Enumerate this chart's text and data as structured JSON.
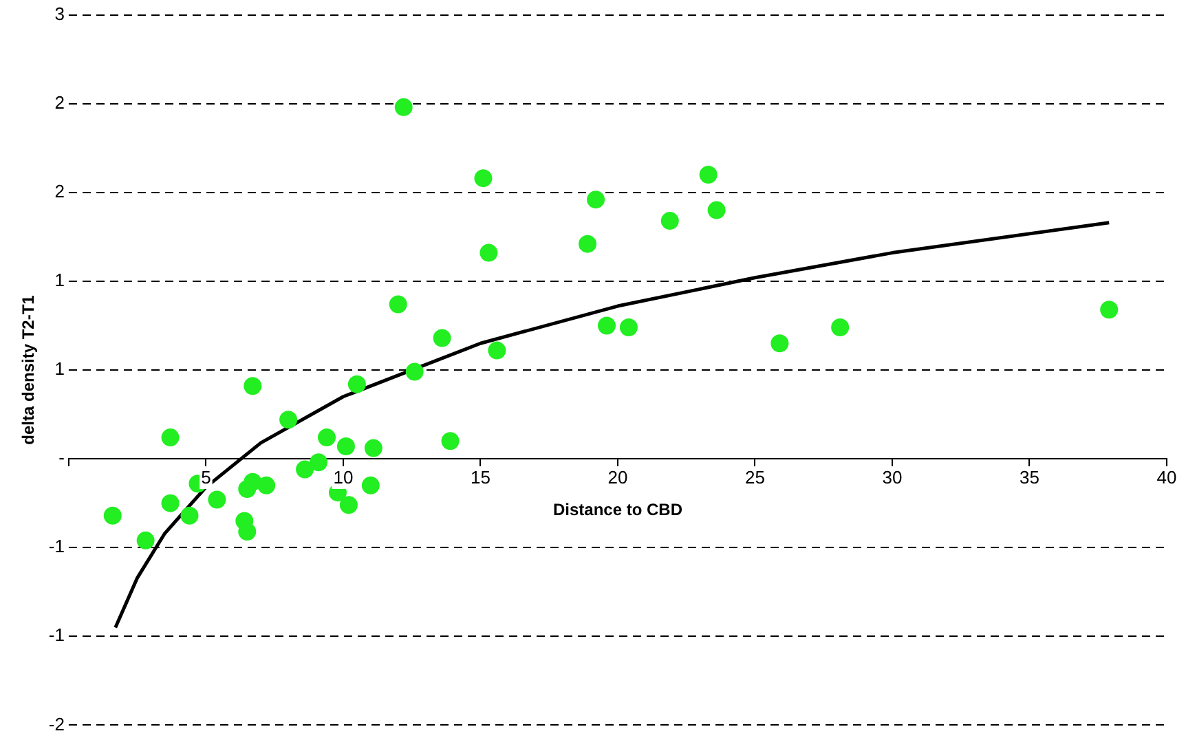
{
  "chart_data": {
    "type": "scatter",
    "xlabel": "Distance to CBD",
    "ylabel": "delta density T2-T1",
    "xlim": [
      0,
      40
    ],
    "xticks": [
      {
        "value": 0,
        "label": null
      },
      5,
      10,
      15,
      20,
      25,
      30,
      35,
      40
    ],
    "ylim": [
      -1.5,
      2.5
    ],
    "yticks": [
      {
        "value": -1.5,
        "label": "-2"
      },
      {
        "value": -1,
        "label": "-1"
      },
      {
        "value": -0.5,
        "label": "-1"
      },
      {
        "value": 0,
        "label": "-"
      },
      {
        "value": 0.5,
        "label": "1"
      },
      {
        "value": 1,
        "label": "1"
      },
      {
        "value": 1.5,
        "label": "2"
      },
      {
        "value": 2,
        "label": "2"
      },
      {
        "value": 2.5,
        "label": "3"
      }
    ],
    "grid": "y",
    "legend": false,
    "series": [
      {
        "type": "scatter",
        "marker": "circle",
        "color": "#22ee22",
        "x": [
          1.6,
          2.8,
          3.7,
          3.7,
          4.4,
          4.7,
          5.4,
          6.5,
          6.4,
          6.5,
          6.7,
          6.7,
          7.2,
          8.0,
          8.6,
          9.1,
          9.4,
          9.8,
          10.1,
          10.2,
          10.5,
          11.0,
          11.1,
          12.0,
          12.2,
          12.6,
          13.6,
          13.9,
          15.1,
          15.3,
          15.6,
          18.9,
          19.2,
          19.6,
          20.4,
          21.9,
          23.3,
          23.6,
          25.9,
          28.1,
          37.9
        ],
        "values": [
          -0.32,
          -0.46,
          0.12,
          -0.25,
          -0.32,
          -0.14,
          -0.23,
          -0.17,
          -0.35,
          -0.41,
          -0.13,
          0.41,
          -0.15,
          0.22,
          -0.06,
          -0.02,
          0.12,
          -0.19,
          0.07,
          -0.26,
          0.42,
          -0.15,
          0.06,
          0.87,
          1.98,
          0.49,
          0.68,
          0.1,
          1.58,
          1.16,
          0.61,
          1.21,
          1.46,
          0.75,
          0.74,
          1.34,
          1.6,
          1.4,
          0.65,
          0.74,
          0.84
        ]
      },
      {
        "type": "line",
        "marker": "none",
        "color": "#000000",
        "x": [
          1.7,
          2.5,
          3.5,
          5,
          7,
          10,
          15,
          20,
          25,
          30,
          37.9
        ],
        "values": [
          -0.95,
          -0.67,
          -0.42,
          -0.16,
          0.09,
          0.35,
          0.65,
          0.86,
          1.02,
          1.16,
          1.33
        ]
      }
    ]
  }
}
